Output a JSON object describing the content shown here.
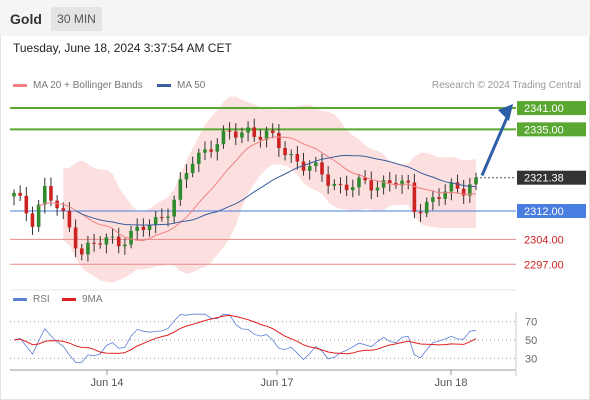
{
  "header": {
    "instrument": "Gold",
    "timeframe": "30 MIN"
  },
  "timestamp": "Tuesday, June 18, 2024 3:37:54 AM CET",
  "legend": {
    "ma20_label": "MA 20 + Bollinger Bands",
    "ma50_label": "MA 50",
    "ma20_color": "#f08080",
    "ma50_color": "#3a5d9c"
  },
  "credit": "Research © 2024 Trading Central",
  "levels": [
    {
      "label": "2341.00",
      "value": 2341.0,
      "style": "green"
    },
    {
      "label": "2335.00",
      "value": 2335.0,
      "style": "green"
    },
    {
      "label": "2321.38",
      "value": 2321.38,
      "style": "price"
    },
    {
      "label": "2312.00",
      "value": 2312.0,
      "style": "blue"
    },
    {
      "label": "2304.00",
      "value": 2304.0,
      "style": "red"
    },
    {
      "label": "2297.00",
      "value": 2297.0,
      "style": "red"
    }
  ],
  "rsi": {
    "rsi_label": "RSI",
    "ma_label": "9MA",
    "rsi_color": "#5b7fd6",
    "ma_color": "#e02020",
    "ticks": [
      "70",
      "50",
      "30"
    ]
  },
  "xaxis": {
    "ticks": [
      "Jun 14",
      "Jun 17",
      "Jun 18"
    ]
  },
  "colors": {
    "up": "#2e8b2e",
    "down": "#cc2222",
    "green_level": "#5aa832",
    "blue_level": "#4a7de0",
    "red_level": "#e88a8a",
    "arrow": "#2d5ea8"
  },
  "chart_data": {
    "type": "candlestick",
    "ylim": [
      2293,
      2345
    ],
    "series": [
      {
        "name": "MA 20 + Bollinger Bands"
      },
      {
        "name": "MA 50"
      }
    ]
  }
}
